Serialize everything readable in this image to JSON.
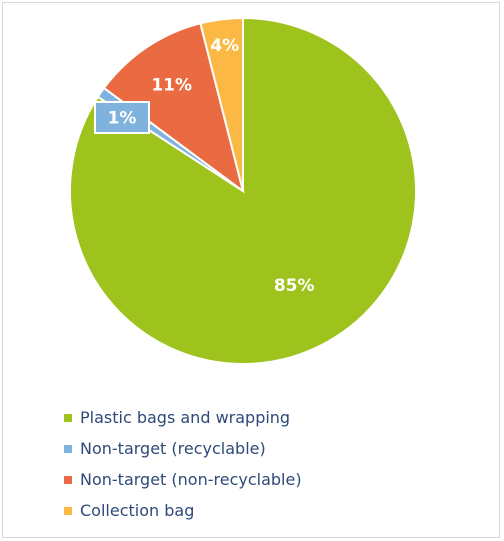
{
  "chart_data": {
    "type": "pie",
    "title": "",
    "categories": [
      "Plastic bags and wrapping",
      "Non-target (recyclable)",
      "Non-target (non-recyclable)",
      "Collection bag"
    ],
    "values": [
      85,
      1,
      11,
      4
    ],
    "data_labels": [
      "85%",
      "1%",
      "11%",
      "4%"
    ],
    "colors": [
      "#9dc31c",
      "#7fb2dd",
      "#ea6a42",
      "#fbb845"
    ],
    "start_angle_deg": 0,
    "direction": "clockwise",
    "legend_position": "bottom-left"
  }
}
